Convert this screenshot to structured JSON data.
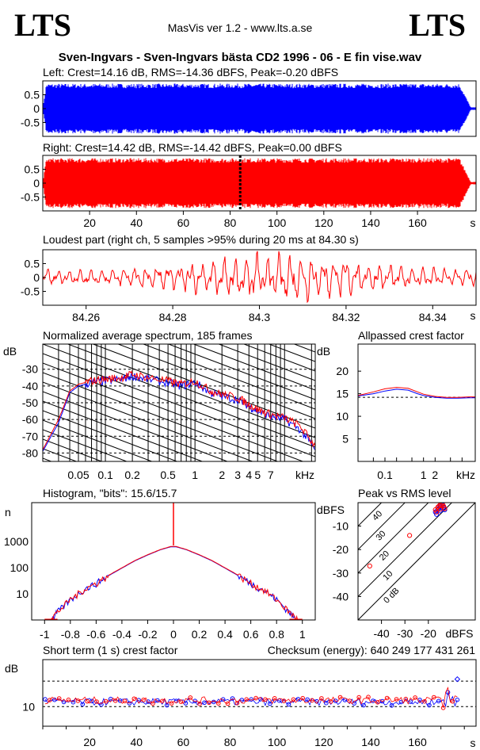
{
  "header": {
    "logo_left": "LTS",
    "logo_right": "LTS",
    "app": "MasVis ver 1.2 - www.lts.a.se",
    "file": "Sven-Ingvars - Sven-Ingvars bästa CD2 1996 - 06 - E fin vise.wav"
  },
  "chart_data": [
    {
      "id": "left-waveform",
      "type": "area",
      "title": "Left: Crest=14.16 dB, RMS=-14.36 dBFS, Peak=-0.20 dBFS",
      "ylim": [
        -1,
        1
      ],
      "yticks": [
        "0.5",
        "0",
        "-0.5"
      ],
      "xlim": [
        0,
        185
      ],
      "envelope_peak": 0.9,
      "end_fade_s": 178,
      "color": "#0000ff"
    },
    {
      "id": "right-waveform",
      "type": "area",
      "title": "Right: Crest=14.42 dB, RMS=-14.42 dBFS, Peak=0.00 dBFS",
      "ylim": [
        -1,
        1
      ],
      "yticks": [
        "0.5",
        "0",
        "-0.5"
      ],
      "xlim": [
        0,
        185
      ],
      "xticks": [
        "20",
        "40",
        "60",
        "80",
        "100",
        "120",
        "140",
        "160"
      ],
      "xunit": "s",
      "envelope_peak": 0.9,
      "end_fade_s": 178,
      "marker_s": 84.3,
      "color": "#ff0000"
    },
    {
      "id": "loudest-part",
      "type": "line",
      "title": "Loudest part (right ch, 5 samples >95% during 20 ms at 84.30 s)",
      "ylim": [
        -1,
        1
      ],
      "yticks": [
        "0.5",
        "0",
        "-0.5"
      ],
      "xlim": [
        84.25,
        84.35
      ],
      "xticks": [
        "84.26",
        "84.28",
        "84.3",
        "84.32",
        "84.34"
      ],
      "xunit": "s",
      "color": "#ff0000"
    },
    {
      "id": "avg-spectrum",
      "type": "line",
      "title": "Normalized average spectrum, 185 frames",
      "ylabel": "dB",
      "ylim": [
        -85,
        -15
      ],
      "yticks": [
        "-30",
        "-40",
        "-50",
        "-60",
        "-70",
        "-80"
      ],
      "xscale": "log",
      "xlim": [
        0.02,
        22
      ],
      "xticks": [
        "0.05",
        "0.1",
        "0.2",
        "0.5",
        "1",
        "2",
        "3",
        "4",
        "5",
        "7"
      ],
      "xunit": "kHz",
      "series": [
        {
          "color": "#0000ff",
          "x": [
            0.02,
            0.03,
            0.04,
            0.05,
            0.07,
            0.1,
            0.15,
            0.2,
            0.3,
            0.5,
            0.7,
            1,
            1.5,
            2,
            3,
            4,
            5,
            7,
            10,
            15,
            22
          ],
          "y": [
            -79,
            -62,
            -44,
            -40,
            -38,
            -37,
            -36,
            -34,
            -36,
            -38,
            -40,
            -38,
            -44,
            -46,
            -48,
            -52,
            -55,
            -58,
            -60,
            -66,
            -78
          ]
        },
        {
          "color": "#ff0000",
          "x": [
            0.02,
            0.03,
            0.04,
            0.05,
            0.07,
            0.1,
            0.15,
            0.2,
            0.3,
            0.5,
            0.7,
            1,
            1.5,
            2,
            3,
            4,
            5,
            7,
            10,
            15,
            22
          ],
          "y": [
            -78,
            -60,
            -43,
            -39,
            -37,
            -36,
            -35,
            -33,
            -35,
            -37,
            -39,
            -37,
            -43,
            -45,
            -47,
            -51,
            -54,
            -57,
            -59,
            -64,
            -76
          ]
        }
      ]
    },
    {
      "id": "allpassed-crest",
      "type": "line",
      "title": "Allpassed crest factor",
      "ylabel": "dB",
      "ylim": [
        0,
        26
      ],
      "yticks": [
        "20",
        "15",
        "10",
        "5"
      ],
      "xscale": "log",
      "xlim": [
        0.02,
        22
      ],
      "xticks": [
        "0.1",
        "1",
        "2"
      ],
      "xunit": "kHz",
      "reference": 14.2,
      "series": [
        {
          "color": "#0000ff",
          "x": [
            0.02,
            0.05,
            0.1,
            0.2,
            0.4,
            0.7,
            1,
            2,
            4,
            8,
            15,
            22
          ],
          "y": [
            14.5,
            15.0,
            15.6,
            16.0,
            15.8,
            15.0,
            14.6,
            14.2,
            14.0,
            14.0,
            14.1,
            14.1
          ]
        },
        {
          "color": "#ff0000",
          "x": [
            0.02,
            0.05,
            0.1,
            0.2,
            0.4,
            0.7,
            1,
            2,
            4,
            8,
            15,
            22
          ],
          "y": [
            14.6,
            15.4,
            16.1,
            16.4,
            16.2,
            15.4,
            14.9,
            14.4,
            14.2,
            14.2,
            14.3,
            14.3
          ]
        }
      ]
    },
    {
      "id": "histogram",
      "type": "line",
      "title": "Histogram, \"bits\": 15.6/15.7",
      "ylabel": "n",
      "yscale": "log",
      "ylim": [
        1,
        30000
      ],
      "yticks": [
        "1000",
        "100",
        "10"
      ],
      "xlim": [
        -1.1,
        1.1
      ],
      "xticks": [
        "-1",
        "-0.8",
        "-0.6",
        "-0.4",
        "-0.2",
        "0",
        "0.2",
        "0.4",
        "0.6",
        "0.8",
        "1"
      ],
      "series": [
        {
          "color": "#0000ff",
          "x": [
            -0.95,
            -0.9,
            -0.8,
            -0.7,
            -0.6,
            -0.5,
            -0.4,
            -0.3,
            -0.2,
            -0.1,
            -0.02,
            0.02,
            0.1,
            0.2,
            0.3,
            0.4,
            0.5,
            0.6,
            0.7,
            0.8,
            0.9,
            0.95
          ],
          "y": [
            1,
            2,
            6,
            14,
            25,
            50,
            95,
            180,
            300,
            480,
            620,
            620,
            480,
            300,
            180,
            95,
            50,
            25,
            14,
            6,
            2,
            1
          ]
        },
        {
          "color": "#ff0000",
          "x": [
            -0.97,
            -0.9,
            -0.8,
            -0.7,
            -0.6,
            -0.5,
            -0.4,
            -0.3,
            -0.2,
            -0.1,
            -0.02,
            0.02,
            0.1,
            0.2,
            0.3,
            0.4,
            0.5,
            0.6,
            0.7,
            0.8,
            0.9,
            0.97
          ],
          "y": [
            1,
            2,
            6,
            14,
            25,
            52,
            98,
            185,
            310,
            490,
            640,
            640,
            490,
            310,
            185,
            98,
            52,
            25,
            14,
            6,
            2,
            1
          ]
        }
      ]
    },
    {
      "id": "peak-vs-rms",
      "type": "scatter",
      "title": "Peak vs RMS level",
      "ylabel": "dBFS",
      "ylim": [
        -50,
        0
      ],
      "yticks": [
        "-10",
        "-20",
        "-30",
        "-40"
      ],
      "xlim": [
        -50,
        0
      ],
      "xticks": [
        "-40",
        "-30",
        "-20"
      ],
      "xunit": "dBFS",
      "crest_lines": [
        "0 dB",
        "10",
        "20",
        "30",
        "40"
      ],
      "series": [
        {
          "color": "#0000ff",
          "points": [
            [
              -17,
              -4
            ],
            [
              -16,
              -3
            ],
            [
              -15.5,
              -2.5
            ],
            [
              -15,
              -3.5
            ],
            [
              -14.5,
              -2
            ],
            [
              -14,
              -1
            ],
            [
              -13.5,
              -2
            ],
            [
              -16.5,
              -5
            ],
            [
              -15,
              -1.5
            ],
            [
              -13,
              -3
            ]
          ]
        },
        {
          "color": "#ff0000",
          "points": [
            [
              -17,
              -3
            ],
            [
              -16,
              -2
            ],
            [
              -15.5,
              -1.5
            ],
            [
              -15,
              -2.8
            ],
            [
              -14.5,
              -1.2
            ],
            [
              -14,
              -0.5
            ],
            [
              -13.5,
              -1.5
            ],
            [
              -16.5,
              -4
            ],
            [
              -15,
              -1
            ],
            [
              -13,
              -2.5
            ],
            [
              -28,
              -14
            ],
            [
              -45,
              -27
            ]
          ]
        }
      ]
    },
    {
      "id": "short-term-crest",
      "type": "scatter",
      "title": "Short term (1 s) crest factor",
      "checksum": "Checksum (energy):   640 249 177 431 261",
      "ylabel": "dB",
      "ylim": [
        5,
        22
      ],
      "yticks": [
        "10"
      ],
      "xlim": [
        0,
        185
      ],
      "xticks": [
        "20",
        "40",
        "60",
        "80",
        "100",
        "120",
        "140",
        "160"
      ],
      "xunit": "s",
      "series": [
        {
          "color": "#0000ff",
          "base": 11.2
        },
        {
          "color": "#ff0000",
          "base": 11.6
        }
      ]
    }
  ]
}
